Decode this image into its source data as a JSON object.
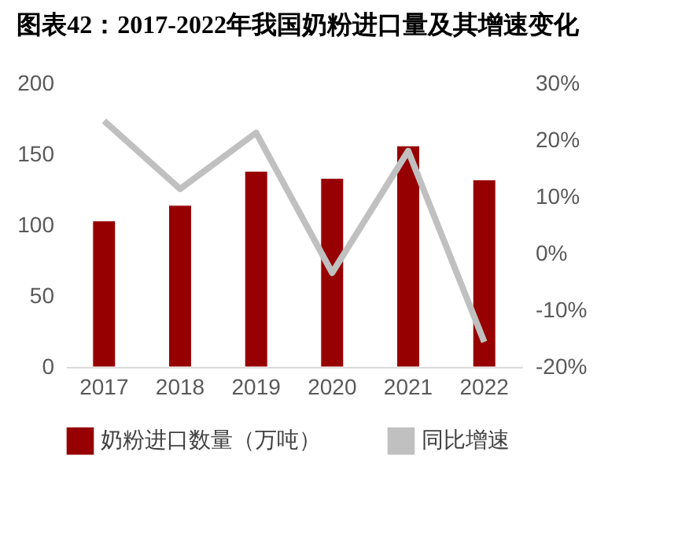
{
  "chart_data": {
    "type": "bar",
    "title": "图表42：2017-2022年我国奶粉进口量及其增速变化",
    "categories": [
      "2017",
      "2018",
      "2019",
      "2020",
      "2021",
      "2022"
    ],
    "series": [
      {
        "name": "奶粉进口数量（万吨）",
        "color": "#960000",
        "values": [
          103,
          114,
          138,
          133,
          156,
          132
        ]
      },
      {
        "name": "同比增速",
        "type": "line",
        "axis": "y2",
        "color": "#c0c0c0",
        "values": [
          23.4,
          11.4,
          21.3,
          -3.4,
          18.1,
          -15.6
        ]
      }
    ],
    "ylim": [
      0,
      200
    ],
    "yticks": [
      0,
      50,
      100,
      150,
      200
    ],
    "y2lim": [
      -20,
      30
    ],
    "y2ticks": [
      {
        "value": -20,
        "label": "-20%"
      },
      {
        "value": -10,
        "label": "-10%"
      },
      {
        "value": 0,
        "label": "0%"
      },
      {
        "value": 10,
        "label": "10%"
      },
      {
        "value": 20,
        "label": "20%"
      },
      {
        "value": 30,
        "label": "30%"
      }
    ],
    "grid": false,
    "legend": "bottom",
    "marker": "none"
  }
}
